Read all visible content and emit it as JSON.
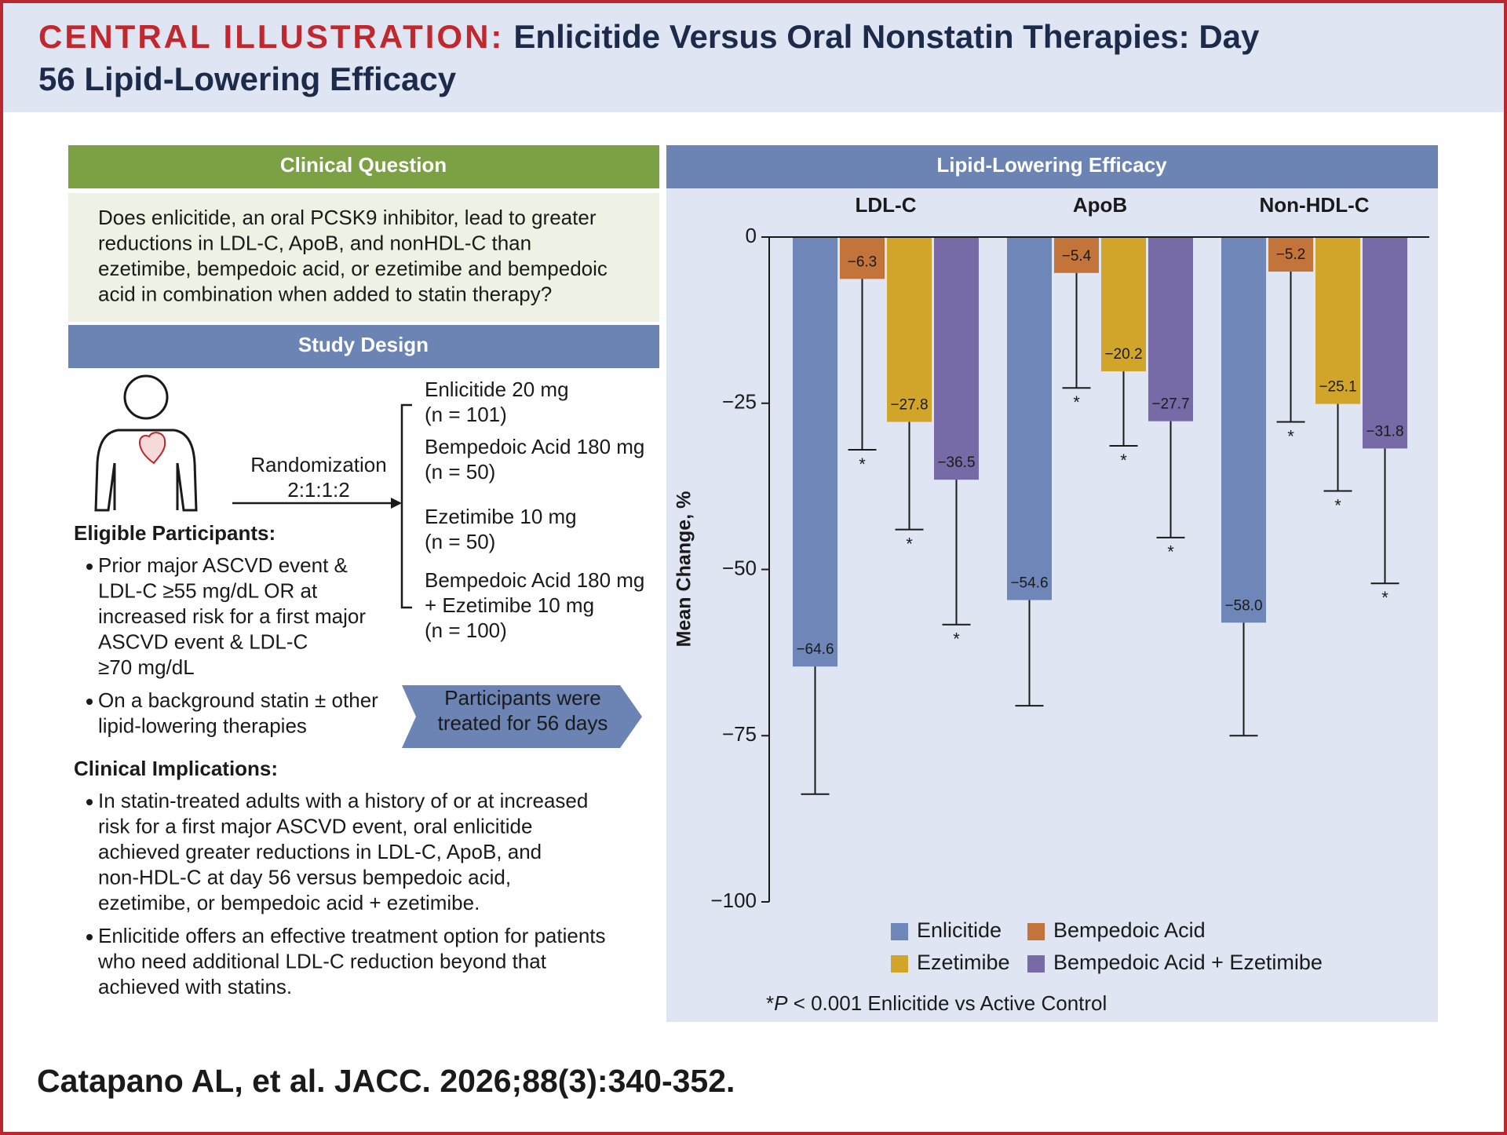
{
  "header": {
    "label": "CENTRAL ILLUSTRATION:",
    "title_lines": [
      "Enlicitide Versus Oral Nonstatin Therapies: Day",
      "56 Lipid-Lowering Efficacy"
    ]
  },
  "clinical_question": {
    "heading": "Clinical Question",
    "lines": [
      "Does enlicitide, an oral PCSK9 inhibitor, lead to greater",
      "reductions in LDL-C, ApoB, and nonHDL-C than",
      "ezetimibe, bempedoic acid, or ezetimibe and bempedoic",
      "acid in combination when added to statin therapy?"
    ]
  },
  "study_design": {
    "heading": "Study Design",
    "randomization": [
      "Randomization",
      "2:1:1:2"
    ],
    "arms": [
      [
        "Enlicitide 20 mg",
        "(n = 101)"
      ],
      [
        "Bempedoic Acid 180 mg",
        "(n = 50)"
      ],
      [
        "Ezetimibe 10 mg",
        "(n = 50)"
      ],
      [
        "Bempedoic Acid 180 mg",
        "+ Ezetimibe 10 mg",
        "(n = 100)"
      ]
    ],
    "eligible_heading": "Eligible Participants:",
    "eligible_bullets": [
      [
        "Prior major ASCVD event &",
        "LDL-C ≥55 mg/dL OR at",
        "increased risk for a first major",
        "ASCVD event & LDL-C",
        "≥70 mg/dL"
      ],
      [
        "On a background statin ± other",
        "lipid-lowering therapies"
      ]
    ],
    "treatment_arrow": [
      "Participants were",
      "treated for 56 days"
    ]
  },
  "clinical_implications": {
    "heading": "Clinical Implications:",
    "bullets": [
      [
        "In statin-treated adults with a history of or at increased",
        "risk for a first major ASCVD event, oral enlicitide",
        "achieved greater reductions in LDL-C, ApoB, and",
        "non-HDL-C at day 56 versus bempedoic acid,",
        "ezetimibe, or bempedoic acid + ezetimibe."
      ],
      [
        "Enlicitide offers an effective treatment option for patients",
        "who need additional LDL-C reduction beyond that",
        "achieved with statins."
      ]
    ]
  },
  "citation": "Catapano AL, et al. JACC. 2026;88(3):340-352.",
  "chart_data": {
    "type": "bar",
    "title": "Lipid-Lowering Efficacy",
    "y_label": "Mean Change, %",
    "categories": [
      "LDL-C",
      "ApoB",
      "Non-HDL-C"
    ],
    "series": [
      {
        "name": "Enlicitide",
        "color": "#6f87b8",
        "values": [
          -64.6,
          -54.6,
          -58.0
        ],
        "value_labels": [
          "−64.6",
          "−54.6",
          "−58.0"
        ],
        "errors": [
          19.2,
          15.9,
          17.0
        ]
      },
      {
        "name": "Bempedoic Acid",
        "color": "#c2743a",
        "values": [
          -6.3,
          -5.4,
          -5.2
        ],
        "value_labels": [
          "−6.3",
          "−5.4",
          "−5.2"
        ],
        "errors": [
          25.7,
          17.3,
          22.6
        ],
        "significance": [
          "*",
          "*",
          "*"
        ]
      },
      {
        "name": "Ezetimibe",
        "color": "#d1a52a",
        "values": [
          -27.8,
          -20.2,
          -25.1
        ],
        "value_labels": [
          "−27.8",
          "−20.2",
          "−25.1"
        ],
        "errors": [
          16.2,
          11.2,
          13.1
        ],
        "significance": [
          "*",
          "*",
          "*"
        ]
      },
      {
        "name": "Bempedoic Acid + Ezetimibe",
        "color": "#776aa6",
        "values": [
          -36.5,
          -27.7,
          -31.8
        ],
        "value_labels": [
          "−36.5",
          "−27.7",
          "−31.8"
        ],
        "errors": [
          21.8,
          17.5,
          20.3
        ],
        "significance": [
          "*",
          "*",
          "*"
        ]
      }
    ],
    "ylim": [
      -100,
      0
    ],
    "yticks": [
      0,
      {
        "value": -25,
        "label": "−25"
      },
      {
        "value": -50,
        "label": "−50"
      },
      {
        "value": -75,
        "label": "−75"
      },
      {
        "value": -100,
        "label": "−100"
      }
    ],
    "legend": "bottom",
    "footnote": [
      "*",
      "P",
      " < 0.001 Enlicitide vs Active Control"
    ]
  }
}
